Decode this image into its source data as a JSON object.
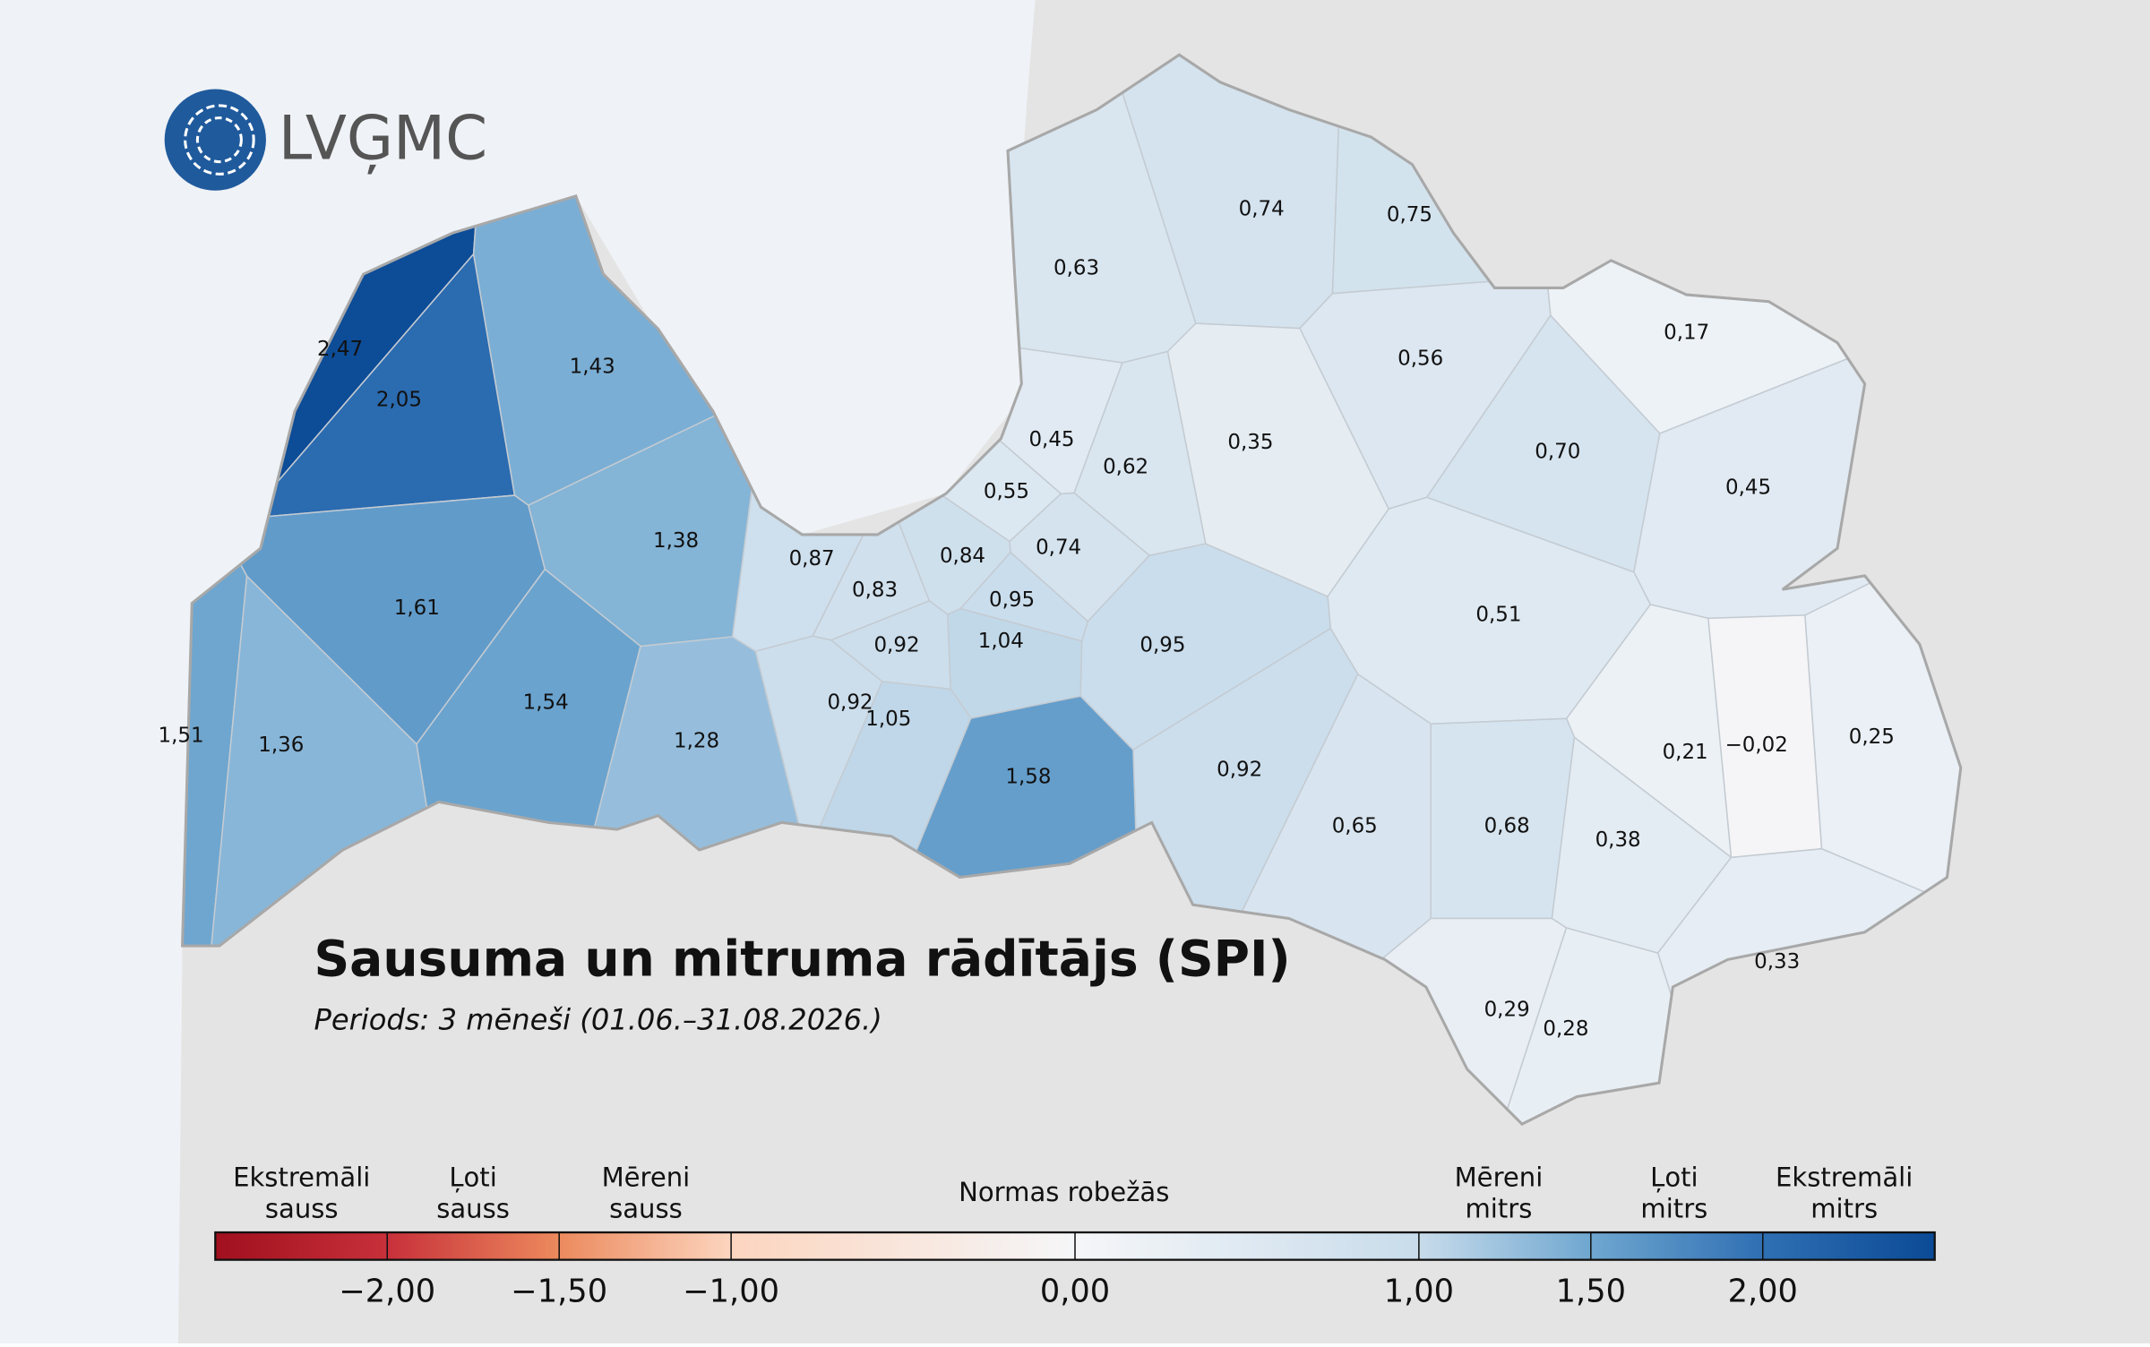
{
  "logo": "LVĢMC",
  "title": "Sausuma un mitruma rādītājs (SPI)",
  "subtitle": "Periods: 3 mēneši (01.06.–31.08.2026.)",
  "map": {
    "values": [
      0.74,
      0.75,
      0.63,
      0.17,
      0.56,
      2.47,
      2.05,
      1.43,
      0.45,
      0.35,
      0.7,
      0.62,
      0.45,
      0.55,
      1.38,
      0.87,
      0.84,
      0.74,
      0.83,
      0.95,
      1.61,
      0.51,
      0.92,
      1.04,
      0.95,
      1.54,
      0.92,
      1.05,
      1.28,
      1.51,
      1.36,
      0.21,
      -0.02,
      0.25,
      0.92,
      1.58,
      0.65,
      0.68,
      0.38,
      0.33,
      0.29,
      0.28
    ],
    "value_labels": [
      "0,74",
      "0,75",
      "0,63",
      "0,17",
      "0,56",
      "2,47",
      "2,05",
      "1,43",
      "0,45",
      "0,35",
      "0,70",
      "0,62",
      "0,45",
      "0,55",
      "1,38",
      "0,87",
      "0,84",
      "0,74",
      "0,83",
      "0,95",
      "1,61",
      "0,51",
      "0,92",
      "1,04",
      "0,95",
      "1,54",
      "0,92",
      "1,05",
      "1,28",
      "1,51",
      "1,36",
      "0,21",
      "−0,02",
      "0,25",
      "0,92",
      "1,58",
      "0,65",
      "0,68",
      "0,38",
      "0,33",
      "0,29",
      "0,28"
    ]
  },
  "legend": {
    "classes": [
      [
        "Ekstremāli",
        "sauss"
      ],
      [
        "Ļoti",
        "sauss"
      ],
      [
        "Mēreni",
        "sauss"
      ],
      [
        "Normas robežās"
      ],
      [
        "Mēreni",
        "mitrs"
      ],
      [
        "Ļoti",
        "mitrs"
      ],
      [
        "Ekstremāli",
        "mitrs"
      ]
    ],
    "lim": [
      -2.5,
      2.5
    ],
    "ticks": [
      {
        "value": -2,
        "label": "−2,00"
      },
      {
        "value": -1.5,
        "label": "−1,50"
      },
      {
        "value": -1,
        "label": "−1,00"
      },
      {
        "value": 0,
        "label": "0,00"
      },
      {
        "value": 1,
        "label": "1,00"
      },
      {
        "value": 1.5,
        "label": "1,50"
      },
      {
        "value": 2,
        "label": "2,00"
      }
    ]
  }
}
